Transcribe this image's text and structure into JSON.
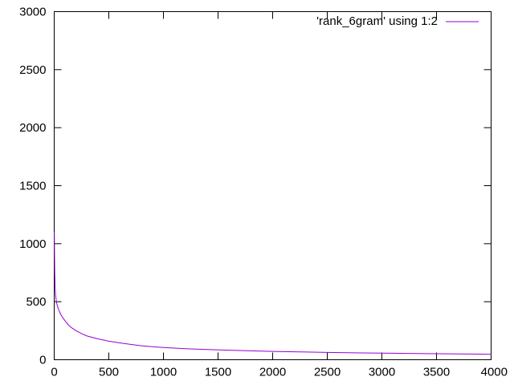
{
  "chart_data": {
    "type": "line",
    "title": "",
    "xlabel": "",
    "ylabel": "",
    "xlim": [
      0,
      4000
    ],
    "ylim": [
      0,
      3000
    ],
    "x_ticks": [
      0,
      500,
      1000,
      1500,
      2000,
      2500,
      3000,
      3500,
      4000
    ],
    "y_ticks": [
      0,
      500,
      1000,
      1500,
      2000,
      2500,
      3000
    ],
    "grid": false,
    "legend_position": "top-right",
    "series": [
      {
        "name": "'rank_6gram' using 1:2",
        "color": "#9400d3",
        "x": [
          1,
          3,
          5,
          8,
          12,
          20,
          30,
          45,
          60,
          80,
          100,
          130,
          160,
          200,
          250,
          300,
          400,
          500,
          600,
          700,
          800,
          900,
          1000,
          1200,
          1400,
          1600,
          1800,
          2000,
          2200,
          2500,
          2800,
          3100,
          3400,
          3700,
          3900,
          4000
        ],
        "y": [
          1100,
          900,
          750,
          630,
          560,
          500,
          460,
          420,
          390,
          360,
          335,
          300,
          275,
          250,
          225,
          205,
          180,
          160,
          145,
          132,
          120,
          112,
          105,
          95,
          88,
          82,
          77,
          72,
          68,
          63,
          59,
          56,
          53,
          50,
          48,
          47
        ]
      }
    ]
  }
}
